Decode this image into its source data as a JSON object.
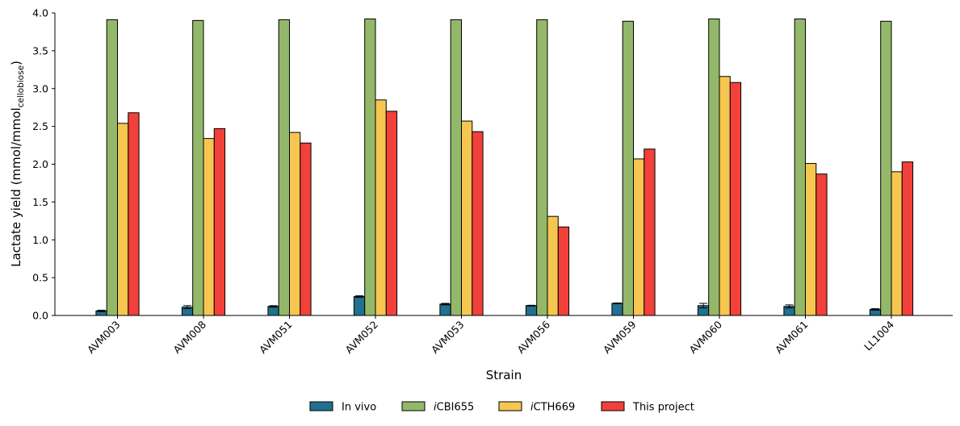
{
  "chart_data": {
    "type": "bar",
    "xlabel": "Strain",
    "ylabel_main": "Lactate yield (mmol/mmol",
    "ylabel_sub": "cellobiose",
    "ylabel_end": ")",
    "ylim": [
      0,
      4.0
    ],
    "yticks": [
      "0.0",
      "0.5",
      "1.0",
      "1.5",
      "2.0",
      "2.5",
      "3.0",
      "3.5",
      "4.0"
    ],
    "grid": false,
    "legend_position": "bottom-center",
    "categories": [
      "AVM003",
      "AVM008",
      "AVM051",
      "AVM052",
      "AVM053",
      "AVM056",
      "AVM059",
      "AVM060",
      "AVM061",
      "LL1004"
    ],
    "series": [
      {
        "name": "In vivo",
        "name_italic_prefix": "",
        "name_rest": "In vivo",
        "color": "#21708f",
        "values": [
          0.06,
          0.11,
          0.12,
          0.25,
          0.15,
          0.13,
          0.16,
          0.13,
          0.12,
          0.08
        ],
        "errors": [
          0.01,
          0.02,
          0.01,
          0.01,
          0.01,
          0.005,
          0.005,
          0.03,
          0.02,
          0.01
        ]
      },
      {
        "name": "iCBI655",
        "name_italic_prefix": "i",
        "name_rest": "CBI655",
        "color": "#93b86a",
        "values": [
          3.91,
          3.9,
          3.91,
          3.92,
          3.91,
          3.91,
          3.89,
          3.92,
          3.92,
          3.89
        ]
      },
      {
        "name": "iCTH669",
        "name_italic_prefix": "i",
        "name_rest": "CTH669",
        "color": "#f6c650",
        "values": [
          2.54,
          2.34,
          2.42,
          2.85,
          2.57,
          1.31,
          2.07,
          3.16,
          2.01,
          1.9
        ]
      },
      {
        "name": "This project",
        "name_italic_prefix": "",
        "name_rest": "This project",
        "color": "#f2403a",
        "values": [
          2.68,
          2.47,
          2.28,
          2.7,
          2.43,
          1.17,
          2.2,
          3.08,
          1.87,
          2.03
        ]
      }
    ]
  }
}
